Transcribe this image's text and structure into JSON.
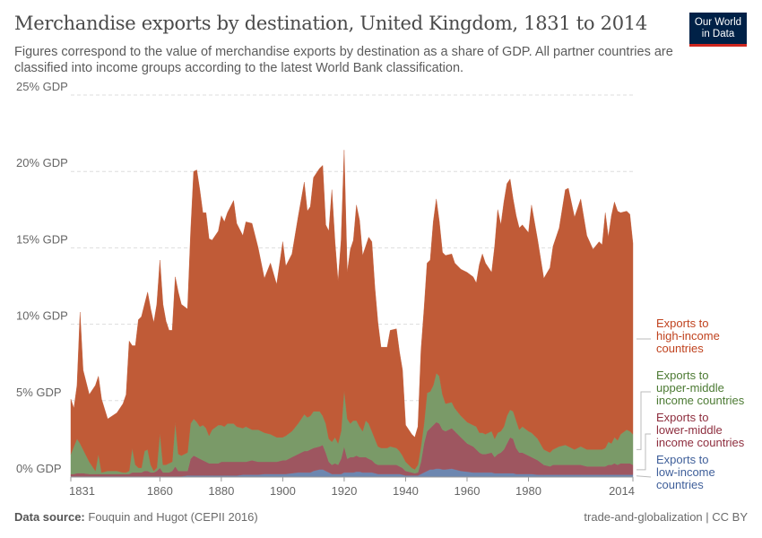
{
  "header": {
    "title": "Merchandise exports by destination, United Kingdom, 1831 to 2014",
    "subtitle": "Figures correspond to the value of merchandise exports by destination as a share of GDP. All partner countries are classified into income groups according to the latest World Bank classification.",
    "logo_text": "Our World in Data"
  },
  "footer": {
    "source_label": "Data source:",
    "source": "Fouquin and Hugot (CEPII 2016)",
    "license": "trade-and-globalization | CC BY"
  },
  "chart_data": {
    "type": "area",
    "stacked": true,
    "title": "Merchandise exports by destination, United Kingdom, 1831 to 2014",
    "xlim": [
      1831,
      2014
    ],
    "ylim": [
      0,
      25
    ],
    "grid": true,
    "legend_placement": "right",
    "x_ticks": [
      "1831",
      "1860",
      "1880",
      "1900",
      "1920",
      "1940",
      "1960",
      "1980",
      "2014"
    ],
    "y_ticks": [
      "0% GDP",
      "5% GDP",
      "10% GDP",
      "15% GDP",
      "20% GDP",
      "25% GDP"
    ],
    "years": [
      1831,
      1832,
      1833,
      1834,
      1835,
      1837,
      1839,
      1840,
      1841,
      1843,
      1846,
      1848,
      1849,
      1850,
      1851,
      1852,
      1853,
      1854,
      1855,
      1856,
      1857,
      1858,
      1859,
      1860,
      1861,
      1862,
      1863,
      1864,
      1865,
      1866,
      1867,
      1869,
      1870,
      1871,
      1872,
      1873,
      1874,
      1875,
      1876,
      1877,
      1879,
      1880,
      1881,
      1882,
      1884,
      1885,
      1887,
      1888,
      1890,
      1892,
      1894,
      1896,
      1898,
      1900,
      1901,
      1903,
      1905,
      1907,
      1908,
      1909,
      1910,
      1912,
      1913,
      1914,
      1915,
      1916,
      1917,
      1918,
      1919,
      1920,
      1921,
      1922,
      1923,
      1924,
      1925,
      1926,
      1927,
      1928,
      1929,
      1930,
      1931,
      1932,
      1934,
      1935,
      1937,
      1938,
      1939,
      1940,
      1942,
      1943,
      1944,
      1945,
      1946,
      1947,
      1948,
      1949,
      1950,
      1951,
      1952,
      1953,
      1955,
      1956,
      1958,
      1960,
      1962,
      1963,
      1964,
      1965,
      1966,
      1968,
      1969,
      1970,
      1971,
      1972,
      1973,
      1974,
      1975,
      1976,
      1977,
      1978,
      1980,
      1981,
      1983,
      1985,
      1987,
      1988,
      1990,
      1992,
      1993,
      1995,
      1997,
      1999,
      2001,
      2003,
      2004,
      2005,
      2006,
      2007,
      2008,
      2009,
      2010,
      2012,
      2013,
      2014
    ],
    "series": [
      {
        "name": "Exports to low-income countries",
        "color": "#6d87b0",
        "label_color": "#3f5f9a",
        "values": [
          0.05,
          0.05,
          0.05,
          0.05,
          0.05,
          0.05,
          0.05,
          0.05,
          0.05,
          0.05,
          0.05,
          0.05,
          0.05,
          0.05,
          0.05,
          0.05,
          0.05,
          0.05,
          0.05,
          0.05,
          0.05,
          0.05,
          0.05,
          0.05,
          0.05,
          0.05,
          0.05,
          0.05,
          0.05,
          0.05,
          0.05,
          0.1,
          0.1,
          0.1,
          0.1,
          0.1,
          0.1,
          0.1,
          0.1,
          0.1,
          0.1,
          0.1,
          0.1,
          0.1,
          0.1,
          0.1,
          0.15,
          0.15,
          0.15,
          0.15,
          0.2,
          0.2,
          0.2,
          0.2,
          0.2,
          0.25,
          0.3,
          0.3,
          0.3,
          0.3,
          0.4,
          0.5,
          0.5,
          0.4,
          0.3,
          0.2,
          0.2,
          0.2,
          0.2,
          0.3,
          0.3,
          0.3,
          0.3,
          0.35,
          0.35,
          0.3,
          0.3,
          0.3,
          0.3,
          0.25,
          0.2,
          0.2,
          0.2,
          0.2,
          0.2,
          0.2,
          0.15,
          0.1,
          0.1,
          0.1,
          0.1,
          0.2,
          0.3,
          0.4,
          0.5,
          0.5,
          0.55,
          0.55,
          0.5,
          0.5,
          0.55,
          0.5,
          0.4,
          0.35,
          0.3,
          0.3,
          0.3,
          0.3,
          0.3,
          0.3,
          0.25,
          0.25,
          0.25,
          0.25,
          0.25,
          0.25,
          0.25,
          0.2,
          0.2,
          0.2,
          0.2,
          0.2,
          0.15,
          0.15,
          0.15,
          0.15,
          0.15,
          0.15,
          0.15,
          0.15,
          0.15,
          0.15,
          0.15,
          0.15,
          0.15,
          0.15,
          0.15,
          0.15,
          0.15,
          0.15,
          0.15,
          0.15,
          0.15,
          0.15
        ]
      },
      {
        "name": "Exports to lower-middle income countries",
        "color": "#9e5660",
        "label_color": "#8e2e3e",
        "values": [
          0.15,
          0.15,
          0.2,
          0.2,
          0.2,
          0.15,
          0.15,
          0.15,
          0.15,
          0.15,
          0.15,
          0.15,
          0.15,
          0.15,
          0.25,
          0.25,
          0.25,
          0.25,
          0.35,
          0.35,
          0.25,
          0.25,
          0.35,
          0.55,
          0.25,
          0.25,
          0.25,
          0.35,
          0.65,
          0.35,
          0.35,
          0.3,
          1.1,
          1.3,
          1.2,
          1.1,
          1.0,
          0.9,
          0.8,
          0.8,
          0.8,
          0.9,
          0.9,
          0.9,
          0.9,
          0.9,
          0.85,
          0.85,
          0.95,
          0.85,
          0.8,
          0.8,
          0.8,
          0.9,
          0.9,
          1.05,
          1.2,
          1.4,
          1.4,
          1.5,
          1.5,
          1.5,
          1.6,
          1.2,
          0.7,
          0.6,
          0.7,
          0.6,
          1.0,
          1.7,
          0.9,
          1.0,
          1.0,
          1.05,
          0.95,
          1.0,
          1.0,
          0.9,
          0.8,
          0.65,
          0.6,
          0.6,
          0.6,
          0.6,
          0.6,
          0.5,
          0.45,
          0.3,
          0.2,
          0.15,
          0.2,
          0.8,
          1.9,
          2.6,
          2.7,
          2.9,
          3.05,
          2.95,
          2.6,
          2.5,
          2.65,
          2.5,
          2.2,
          1.85,
          1.7,
          1.5,
          1.3,
          1.2,
          1.2,
          1.3,
          1.05,
          1.25,
          1.35,
          1.55,
          1.95,
          2.35,
          2.25,
          1.7,
          1.4,
          1.4,
          1.2,
          1.1,
          0.95,
          0.65,
          0.55,
          0.65,
          0.65,
          0.65,
          0.65,
          0.65,
          0.65,
          0.55,
          0.55,
          0.55,
          0.55,
          0.55,
          0.65,
          0.65,
          0.75,
          0.65,
          0.75,
          0.75,
          0.75,
          0.65
        ]
      },
      {
        "name": "Exports to upper-middle income countries",
        "color": "#7a9a68",
        "label_color": "#4c7a33",
        "values": [
          1.3,
          1.8,
          2.25,
          1.95,
          1.55,
          0.8,
          0.2,
          1.3,
          0.1,
          0.2,
          0.2,
          0.1,
          0.1,
          0.2,
          1.6,
          0.5,
          0.3,
          0.3,
          1.3,
          1.4,
          0.5,
          0.1,
          0.2,
          2.3,
          0.5,
          0.5,
          0.6,
          0.6,
          2.9,
          1.1,
          1.0,
          1.2,
          2.3,
          2.4,
          2.3,
          2.1,
          2.3,
          2.2,
          1.8,
          2.2,
          2.5,
          2.4,
          2.3,
          2.5,
          2.5,
          2.3,
          2.2,
          2.3,
          2.0,
          2.1,
          1.9,
          1.8,
          1.6,
          1.5,
          1.6,
          1.7,
          2.0,
          2.4,
          2.2,
          2.2,
          2.4,
          2.3,
          1.9,
          1.9,
          1.5,
          1.5,
          1.7,
          1.4,
          1.8,
          3.7,
          2.6,
          2.2,
          2.4,
          2.3,
          2.0,
          1.7,
          2.4,
          2.3,
          1.9,
          1.6,
          1.2,
          1.1,
          1.1,
          1.2,
          1.1,
          1.0,
          0.8,
          0.6,
          0.3,
          0.25,
          0.5,
          1.0,
          1.3,
          2.5,
          2.4,
          2.6,
          3.2,
          3.1,
          2.3,
          1.8,
          1.7,
          1.5,
          1.4,
          1.4,
          1.4,
          1.5,
          1.3,
          1.4,
          1.3,
          1.4,
          1.2,
          1.4,
          1.4,
          1.5,
          1.8,
          1.8,
          1.8,
          1.8,
          1.5,
          1.7,
          1.6,
          1.6,
          1.4,
          1.0,
          0.9,
          1.0,
          1.2,
          1.3,
          1.2,
          1.0,
          1.2,
          1.1,
          1.1,
          1.1,
          1.1,
          1.2,
          1.5,
          1.4,
          1.7,
          1.6,
          1.9,
          2.2,
          2.1,
          2.0
        ]
      },
      {
        "name": "Exports to high-income countries",
        "color": "#c05b37",
        "label_color": "#c0431f",
        "values": [
          3.6,
          2.5,
          3.5,
          8.6,
          5.2,
          4.4,
          5.6,
          5.1,
          4.8,
          3.4,
          3.8,
          4.5,
          5.1,
          8.5,
          6.7,
          7.8,
          9.7,
          9.9,
          9.6,
          10.3,
          10.2,
          9.7,
          10.7,
          11.3,
          10.5,
          9.4,
          8.7,
          8.6,
          9.5,
          10.6,
          9.9,
          9.4,
          12.5,
          16.2,
          16.5,
          15.5,
          13.9,
          14.1,
          12.9,
          12.4,
          12.7,
          13.7,
          13.4,
          13.8,
          14.6,
          13.3,
          12.6,
          13.4,
          13.5,
          11.9,
          10.1,
          11.2,
          10.0,
          12.8,
          11.1,
          11.6,
          13.5,
          15.2,
          13.5,
          13.7,
          15.3,
          15.9,
          16.4,
          13.0,
          13.6,
          16.5,
          12.8,
          10.6,
          12.5,
          15.7,
          9.6,
          11.4,
          11.8,
          14.1,
          13.5,
          11.5,
          11.4,
          12.2,
          12.4,
          9.9,
          8.1,
          6.6,
          6.6,
          7.6,
          7.8,
          6.5,
          5.6,
          2.4,
          2.2,
          2.1,
          2.5,
          6.3,
          7.5,
          8.5,
          8.6,
          10.7,
          11.4,
          10.1,
          9.3,
          9.7,
          9.7,
          9.5,
          9.6,
          9.8,
          9.7,
          9.4,
          11.0,
          11.7,
          11.2,
          10.4,
          12.6,
          14.6,
          13.5,
          14.7,
          15.2,
          15.1,
          13.9,
          13.4,
          13.2,
          13.2,
          13.0,
          14.9,
          13.0,
          11.2,
          12.1,
          13.3,
          14.3,
          16.7,
          16.9,
          15.2,
          16.2,
          14.0,
          13.1,
          13.6,
          13.4,
          15.4,
          13.4,
          14.9,
          15.4,
          15.0,
          14.5,
          14.3,
          14.2,
          12.5
        ]
      }
    ],
    "legend": [
      {
        "lines": [
          "Exports to",
          "high-income",
          "countries"
        ]
      },
      {
        "lines": [
          "Exports to",
          "upper-middle",
          "income countries"
        ]
      },
      {
        "lines": [
          "Exports to",
          "lower-middle",
          "income countries"
        ]
      },
      {
        "lines": [
          "Exports to",
          "low-income",
          "countries"
        ]
      }
    ]
  }
}
